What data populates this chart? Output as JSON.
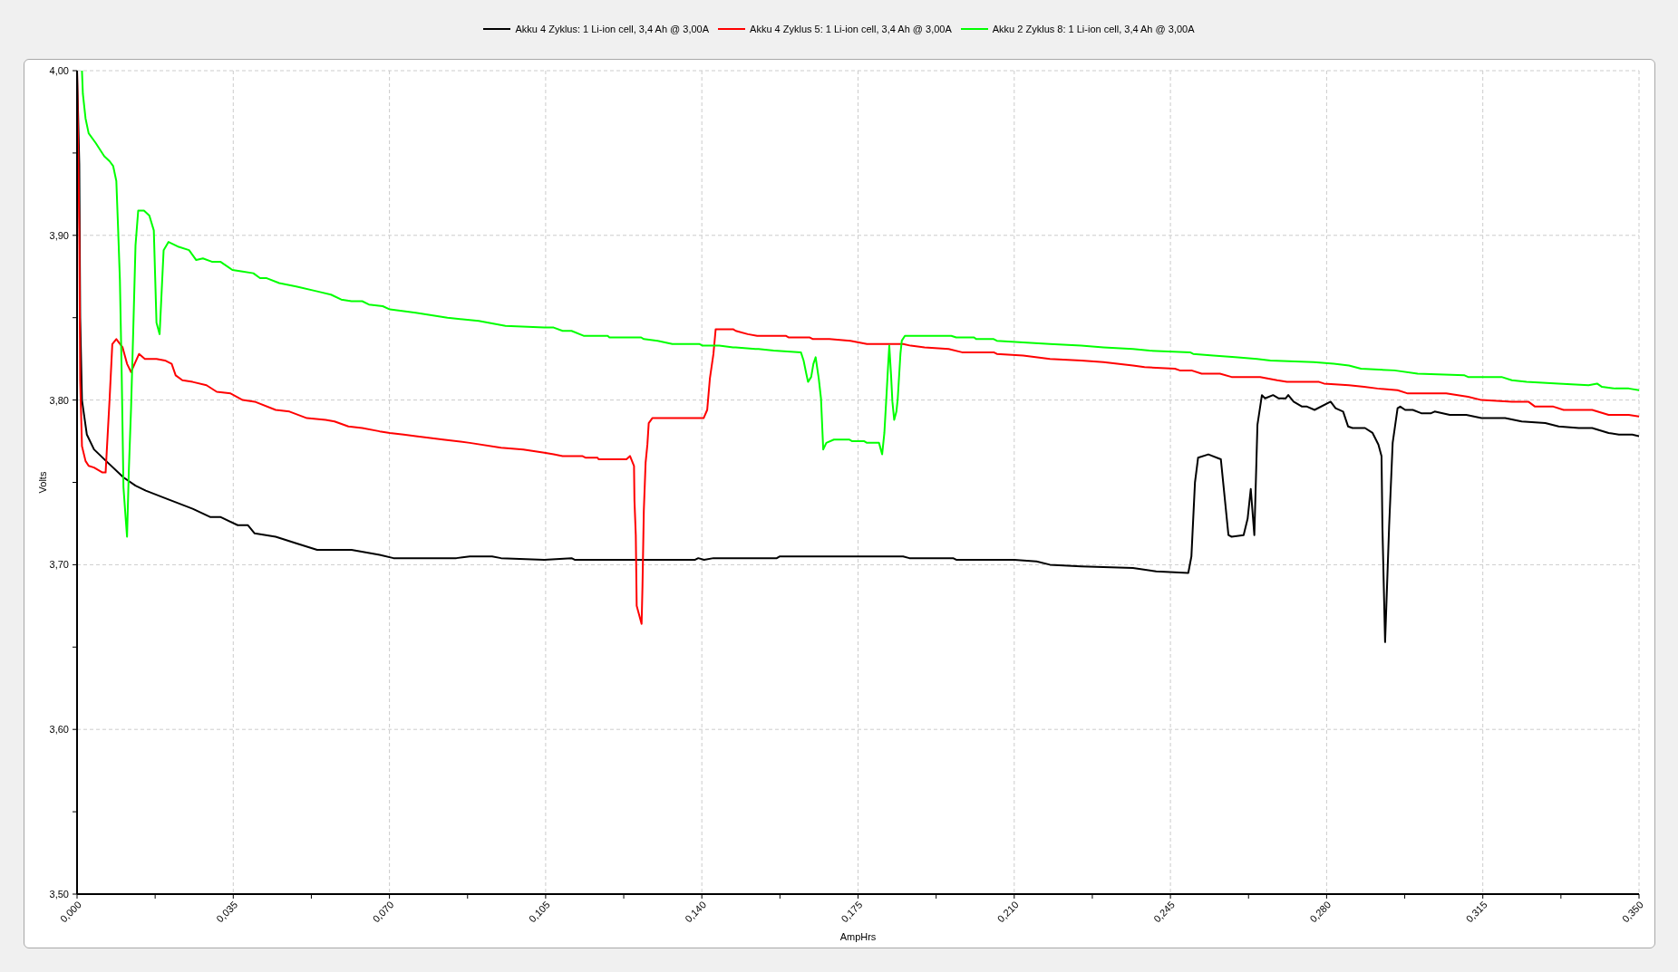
{
  "chart_data": {
    "type": "line",
    "xlabel": "AmpHrs",
    "ylabel": "Volts",
    "xlim": [
      0,
      0.35
    ],
    "ylim": [
      3.5,
      4.0
    ],
    "xticks": [
      {
        "value": 0,
        "label": "0,000"
      },
      {
        "value": 0.0175,
        "label": null
      },
      {
        "value": 0.035,
        "label": "0,035"
      },
      {
        "value": 0.0525,
        "label": null
      },
      {
        "value": 0.07,
        "label": "0,070"
      },
      {
        "value": 0.0875,
        "label": null
      },
      {
        "value": 0.105,
        "label": "0,105"
      },
      {
        "value": 0.1225,
        "label": null
      },
      {
        "value": 0.14,
        "label": "0,140"
      },
      {
        "value": 0.1575,
        "label": null
      },
      {
        "value": 0.175,
        "label": "0,175"
      },
      {
        "value": 0.1925,
        "label": null
      },
      {
        "value": 0.21,
        "label": "0,210"
      },
      {
        "value": 0.2275,
        "label": null
      },
      {
        "value": 0.245,
        "label": "0,245"
      },
      {
        "value": 0.2625,
        "label": null
      },
      {
        "value": 0.28,
        "label": "0,280"
      },
      {
        "value": 0.2975,
        "label": null
      },
      {
        "value": 0.315,
        "label": "0,315"
      },
      {
        "value": 0.3325,
        "label": null
      },
      {
        "value": 0.35,
        "label": "0,350"
      }
    ],
    "yticks": [
      {
        "value": 3.5,
        "label": "3,50"
      },
      {
        "value": 3.55,
        "label": null
      },
      {
        "value": 3.6,
        "label": "3,60"
      },
      {
        "value": 3.65,
        "label": null
      },
      {
        "value": 3.7,
        "label": "3,70"
      },
      {
        "value": 3.75,
        "label": null
      },
      {
        "value": 3.8,
        "label": "3,80"
      },
      {
        "value": 3.85,
        "label": null
      },
      {
        "value": 3.9,
        "label": "3,90"
      },
      {
        "value": 3.95,
        "label": null
      },
      {
        "value": 4.0,
        "label": "4,00"
      }
    ],
    "grid": true,
    "legend": "top",
    "marker": "none",
    "line_style": "solid",
    "series": [
      {
        "name": "Akku 4 Zyklus: 1 Li-ion cell, 3,4 Ah @ 3,00A",
        "color": "#000000",
        "x": [
          0,
          0.0005,
          0.0007,
          0.0011,
          0.0022,
          0.0038,
          0.0065,
          0.0104,
          0.0131,
          0.0154,
          0.0201,
          0.0259,
          0.0298,
          0.0321,
          0.036,
          0.0383,
          0.0398,
          0.0445,
          0.0491,
          0.0538,
          0.0569,
          0.0615,
          0.0678,
          0.0709,
          0.0759,
          0.085,
          0.088,
          0.093,
          0.095,
          0.1047,
          0.1108,
          0.1115,
          0.1385,
          0.1392,
          0.1405,
          0.1426,
          0.1568,
          0.1574,
          0.1851,
          0.1865,
          0.1963,
          0.197,
          0.21,
          0.215,
          0.218,
          0.225,
          0.2366,
          0.2418,
          0.249,
          0.2497,
          0.2505,
          0.2512,
          0.2535,
          0.2563,
          0.258,
          0.2587,
          0.2614,
          0.2623,
          0.263,
          0.2638,
          0.2645,
          0.2655,
          0.2662,
          0.268,
          0.2693,
          0.2708,
          0.2714,
          0.2726,
          0.2745,
          0.2756,
          0.2773,
          0.2809,
          0.282,
          0.2837,
          0.2848,
          0.2858,
          0.2886,
          0.2903,
          0.2916,
          0.2923,
          0.2925,
          0.2931,
          0.294,
          0.2948,
          0.2959,
          0.2965,
          0.2976,
          0.2993,
          0.3012,
          0.3034,
          0.3042,
          0.3076,
          0.3113,
          0.3147,
          0.32,
          0.3237,
          0.329,
          0.332,
          0.3365,
          0.3395,
          0.3432,
          0.3455,
          0.3485,
          0.35
        ],
        "values": [
          4.0,
          3.943,
          3.85,
          3.8,
          3.779,
          3.77,
          3.763,
          3.753,
          3.748,
          3.745,
          3.74,
          3.734,
          3.729,
          3.729,
          3.724,
          3.724,
          3.719,
          3.717,
          3.713,
          3.709,
          3.709,
          3.709,
          3.706,
          3.704,
          3.704,
          3.704,
          3.705,
          3.705,
          3.704,
          3.703,
          3.704,
          3.703,
          3.703,
          3.704,
          3.703,
          3.704,
          3.704,
          3.705,
          3.705,
          3.704,
          3.704,
          3.703,
          3.703,
          3.702,
          3.7,
          3.699,
          3.698,
          3.696,
          3.695,
          3.705,
          3.75,
          3.765,
          3.767,
          3.764,
          3.718,
          3.717,
          3.718,
          3.728,
          3.746,
          3.718,
          3.785,
          3.803,
          3.801,
          3.803,
          3.801,
          3.801,
          3.803,
          3.799,
          3.796,
          3.796,
          3.794,
          3.799,
          3.795,
          3.793,
          3.784,
          3.783,
          3.783,
          3.78,
          3.773,
          3.766,
          3.723,
          3.653,
          3.723,
          3.774,
          3.795,
          3.796,
          3.794,
          3.794,
          3.792,
          3.792,
          3.793,
          3.791,
          3.791,
          3.789,
          3.789,
          3.787,
          3.786,
          3.784,
          3.783,
          3.783,
          3.78,
          3.779,
          3.779,
          3.778
        ]
      },
      {
        "name": "Akku 4 Zyklus 5: 1 Li-ion cell, 3,4 Ah @ 3,00A",
        "color": "#ff0000",
        "x": [
          0,
          0.0005,
          0.0007,
          0.0011,
          0.0019,
          0.0026,
          0.0038,
          0.0057,
          0.0064,
          0.0073,
          0.0079,
          0.0088,
          0.0102,
          0.0112,
          0.0121,
          0.0129,
          0.0139,
          0.0152,
          0.0178,
          0.0197,
          0.0212,
          0.0221,
          0.0236,
          0.0259,
          0.029,
          0.0313,
          0.0344,
          0.0371,
          0.0398,
          0.0445,
          0.0476,
          0.0515,
          0.0557,
          0.0577,
          0.0608,
          0.0639,
          0.0678,
          0.0701,
          0.0732,
          0.0759,
          0.082,
          0.088,
          0.095,
          0.1,
          0.1047,
          0.1068,
          0.1088,
          0.1132,
          0.1139,
          0.1166,
          0.1169,
          0.1231,
          0.1239,
          0.1248,
          0.1249,
          0.1252,
          0.1254,
          0.1265,
          0.1267,
          0.127,
          0.1274,
          0.1278,
          0.1281,
          0.1289,
          0.1404,
          0.1412,
          0.1418,
          0.1426,
          0.1431,
          0.1443,
          0.147,
          0.1476,
          0.1503,
          0.1524,
          0.1588,
          0.1595,
          0.1642,
          0.1649,
          0.1679,
          0.1686,
          0.1733,
          0.177,
          0.1851,
          0.1868,
          0.1899,
          0.1953,
          0.1983,
          0.2054,
          0.2061,
          0.212,
          0.218,
          0.225,
          0.23,
          0.2366,
          0.2392,
          0.246,
          0.2471,
          0.2497,
          0.252,
          0.2561,
          0.2587,
          0.2651,
          0.2689,
          0.2711,
          0.2783,
          0.2794,
          0.285,
          0.2884,
          0.2914,
          0.2959,
          0.2982,
          0.3068,
          0.3117,
          0.3147,
          0.3215,
          0.3252,
          0.3267,
          0.3308,
          0.3331,
          0.3395,
          0.3432,
          0.3477,
          0.35
        ],
        "values": [
          4.0,
          3.904,
          3.812,
          3.772,
          3.763,
          3.76,
          3.759,
          3.756,
          3.756,
          3.801,
          3.834,
          3.837,
          3.832,
          3.822,
          3.817,
          3.822,
          3.828,
          3.825,
          3.825,
          3.824,
          3.822,
          3.815,
          3.812,
          3.811,
          3.809,
          3.805,
          3.804,
          3.8,
          3.799,
          3.794,
          3.793,
          3.789,
          3.788,
          3.787,
          3.784,
          3.783,
          3.781,
          3.78,
          3.779,
          3.778,
          3.776,
          3.774,
          3.771,
          3.77,
          3.768,
          3.767,
          3.766,
          3.766,
          3.765,
          3.765,
          3.764,
          3.764,
          3.766,
          3.76,
          3.739,
          3.718,
          3.675,
          3.664,
          3.687,
          3.733,
          3.762,
          3.773,
          3.786,
          3.789,
          3.789,
          3.794,
          3.813,
          3.828,
          3.843,
          3.843,
          3.843,
          3.842,
          3.84,
          3.839,
          3.839,
          3.838,
          3.838,
          3.837,
          3.837,
          3.837,
          3.836,
          3.834,
          3.834,
          3.833,
          3.832,
          3.831,
          3.829,
          3.829,
          3.828,
          3.827,
          3.825,
          3.824,
          3.823,
          3.821,
          3.82,
          3.819,
          3.818,
          3.818,
          3.816,
          3.816,
          3.814,
          3.814,
          3.812,
          3.811,
          3.811,
          3.81,
          3.809,
          3.808,
          3.807,
          3.806,
          3.804,
          3.804,
          3.802,
          3.8,
          3.799,
          3.799,
          3.796,
          3.796,
          3.794,
          3.794,
          3.791,
          3.791,
          3.79
        ]
      },
      {
        "name": "Akku 2 Zyklus 8: 1 Li-ion cell, 3,4 Ah @ 3,00A",
        "color": "#00ff00",
        "x": [
          0.0011,
          0.0013,
          0.0019,
          0.0026,
          0.0042,
          0.0061,
          0.0073,
          0.0081,
          0.0088,
          0.0092,
          0.0096,
          0.01,
          0.0104,
          0.0109,
          0.0112,
          0.0116,
          0.0121,
          0.0126,
          0.0131,
          0.0137,
          0.015,
          0.0162,
          0.0172,
          0.0175,
          0.0178,
          0.0185,
          0.0194,
          0.0205,
          0.0228,
          0.0251,
          0.0267,
          0.0282,
          0.0302,
          0.0321,
          0.0348,
          0.0371,
          0.0395,
          0.041,
          0.0425,
          0.0453,
          0.0491,
          0.0538,
          0.0569,
          0.0592,
          0.0615,
          0.0639,
          0.0654,
          0.0685,
          0.0701,
          0.0732,
          0.0759,
          0.083,
          0.09,
          0.096,
          0.1047,
          0.1068,
          0.1088,
          0.1108,
          0.1135,
          0.1189,
          0.1193,
          0.123,
          0.1264,
          0.127,
          0.1301,
          0.1334,
          0.1395,
          0.1402,
          0.1439,
          0.147,
          0.1476,
          0.152,
          0.1527,
          0.1561,
          0.1622,
          0.1628,
          0.1634,
          0.1638,
          0.1645,
          0.165,
          0.1655,
          0.1662,
          0.1667,
          0.1672,
          0.1679,
          0.1696,
          0.173,
          0.1737,
          0.1764,
          0.177,
          0.1797,
          0.1804,
          0.1809,
          0.1814,
          0.1817,
          0.182,
          0.1824,
          0.1827,
          0.1831,
          0.1836,
          0.1839,
          0.1845,
          0.1848,
          0.1855,
          0.1959,
          0.197,
          0.201,
          0.2015,
          0.2054,
          0.2061,
          0.212,
          0.218,
          0.225,
          0.23,
          0.2366,
          0.2403,
          0.2494,
          0.2501,
          0.2546,
          0.2595,
          0.2644,
          0.2674,
          0.2771,
          0.2816,
          0.285,
          0.2877,
          0.2952,
          0.3004,
          0.3109,
          0.3117,
          0.3192,
          0.3215,
          0.3248,
          0.332,
          0.3387,
          0.3406,
          0.3417,
          0.3447,
          0.3477,
          0.35
        ],
        "values": [
          4.0,
          3.986,
          3.971,
          3.962,
          3.956,
          3.948,
          3.945,
          3.942,
          3.933,
          3.904,
          3.873,
          3.816,
          3.747,
          3.728,
          3.717,
          3.757,
          3.795,
          3.843,
          3.894,
          3.915,
          3.915,
          3.912,
          3.903,
          3.875,
          3.847,
          3.84,
          3.891,
          3.896,
          3.893,
          3.891,
          3.885,
          3.886,
          3.884,
          3.884,
          3.879,
          3.878,
          3.877,
          3.874,
          3.874,
          3.871,
          3.869,
          3.866,
          3.864,
          3.861,
          3.86,
          3.86,
          3.858,
          3.857,
          3.855,
          3.854,
          3.853,
          3.85,
          3.848,
          3.845,
          3.844,
          3.844,
          3.842,
          3.842,
          3.839,
          3.839,
          3.838,
          3.838,
          3.838,
          3.837,
          3.836,
          3.834,
          3.834,
          3.833,
          3.833,
          3.832,
          3.832,
          3.831,
          3.831,
          3.83,
          3.829,
          3.824,
          3.816,
          3.811,
          3.814,
          3.822,
          3.826,
          3.813,
          3.801,
          3.77,
          3.774,
          3.776,
          3.776,
          3.775,
          3.775,
          3.774,
          3.774,
          3.767,
          3.78,
          3.804,
          3.819,
          3.833,
          3.815,
          3.799,
          3.788,
          3.793,
          3.801,
          3.828,
          3.836,
          3.839,
          3.839,
          3.838,
          3.838,
          3.837,
          3.837,
          3.836,
          3.835,
          3.834,
          3.833,
          3.832,
          3.831,
          3.83,
          3.829,
          3.828,
          3.827,
          3.826,
          3.825,
          3.824,
          3.823,
          3.822,
          3.821,
          3.819,
          3.818,
          3.816,
          3.815,
          3.814,
          3.814,
          3.812,
          3.811,
          3.81,
          3.809,
          3.81,
          3.808,
          3.807,
          3.807,
          3.806
        ]
      }
    ]
  }
}
